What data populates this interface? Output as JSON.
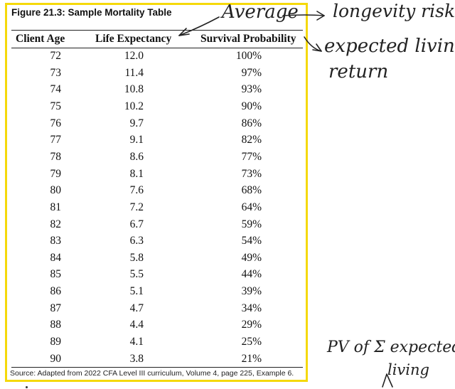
{
  "figure": {
    "title": "Figure 21.3:  Sample Mortality Table",
    "headers": [
      "Client Age",
      "Life Expectancy",
      "Survival Probability"
    ],
    "rows": [
      [
        "72",
        "12.0",
        "100%"
      ],
      [
        "73",
        "11.4",
        "97%"
      ],
      [
        "74",
        "10.8",
        "93%"
      ],
      [
        "75",
        "10.2",
        "90%"
      ],
      [
        "76",
        "9.7",
        "86%"
      ],
      [
        "77",
        "9.1",
        "82%"
      ],
      [
        "78",
        "8.6",
        "77%"
      ],
      [
        "79",
        "8.1",
        "73%"
      ],
      [
        "80",
        "7.6",
        "68%"
      ],
      [
        "81",
        "7.2",
        "64%"
      ],
      [
        "82",
        "6.7",
        "59%"
      ],
      [
        "83",
        "6.3",
        "54%"
      ],
      [
        "84",
        "5.8",
        "49%"
      ],
      [
        "85",
        "5.5",
        "44%"
      ],
      [
        "86",
        "5.1",
        "39%"
      ],
      [
        "87",
        "4.7",
        "34%"
      ],
      [
        "88",
        "4.4",
        "29%"
      ],
      [
        "89",
        "4.1",
        "25%"
      ],
      [
        "90",
        "3.8",
        "21%"
      ]
    ],
    "source": "Source: Adapted from 2022 CFA Level III curriculum, Volume 4, page 225, Example 6."
  },
  "annotations": {
    "average": "Average",
    "longevity_risk": "longevity risk",
    "expected_living": "expected living",
    "return": "return",
    "pv_sum": "PV of Σ expected",
    "living": "living"
  },
  "colors": {
    "highlight_frame": "#f5d90a",
    "ink": "#222222"
  }
}
